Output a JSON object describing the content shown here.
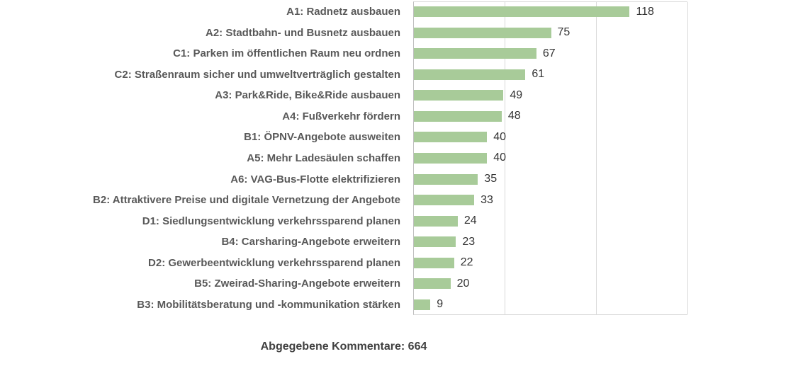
{
  "chart_data": {
    "type": "bar",
    "orientation": "horizontal",
    "title": "",
    "xlabel": "",
    "ylabel": "",
    "categories": [
      "A1: Radnetz ausbauen",
      "A2: Stadtbahn- und Busnetz ausbauen",
      "C1: Parken im öffentlichen Raum neu ordnen",
      "C2: Straßenraum sicher und umweltverträglich gestalten",
      "A3: Park&Ride, Bike&Ride ausbauen",
      "A4: Fußverkehr fördern",
      "B1: ÖPNV-Angebote ausweiten",
      "A5: Mehr Ladesäulen schaffen",
      "A6: VAG-Bus-Flotte elektrifizieren",
      "B2: Attraktivere Preise und digitale Vernetzung der Angebote",
      "D1: Siedlungsentwicklung verkehrssparend planen",
      "B4: Carsharing-Angebote erweitern",
      "D2: Gewerbeentwicklung verkehrssparend planen",
      "B5: Zweirad-Sharing-Angebote erweitern",
      "B3: Mobilitätsberatung und -kommunikation stärken"
    ],
    "values": [
      118,
      75,
      67,
      61,
      49,
      48,
      40,
      40,
      35,
      33,
      24,
      23,
      22,
      20,
      9
    ],
    "data_labels": true,
    "xlim": [
      0,
      150
    ],
    "gridline_values": [
      50,
      100,
      150
    ],
    "grid": true,
    "legend": false
  },
  "caption": {
    "text": "Abgegebene Kommentare: 664"
  },
  "colors": {
    "bar": "#a8cb99",
    "category_label": "#595959",
    "value_label": "#333333",
    "gridline": "#d9d9d9",
    "axis_line": "#bfbfbf",
    "caption": "#404040",
    "background": "#ffffff"
  }
}
